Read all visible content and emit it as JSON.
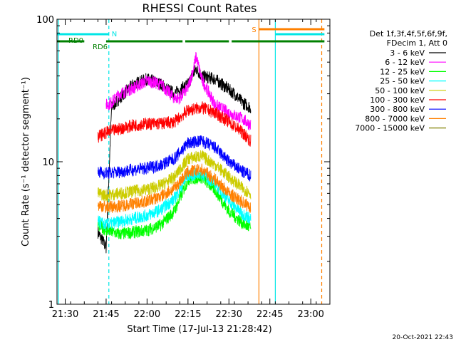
{
  "chart_data": {
    "type": "line",
    "title": "RHESSI Count Rates",
    "xlabel": "Start Time (17-Jul-13 21:28:42)",
    "ylabel": "Count Rate (s⁻¹ detector segment⁻¹)",
    "y_scale": "log",
    "ylim": [
      1,
      100
    ],
    "xlim": [
      "21:27",
      "23:07"
    ],
    "x_ticks": [
      "21:30",
      "21:45",
      "22:00",
      "22:15",
      "22:30",
      "22:45",
      "23:00"
    ],
    "y_ticks": [
      "1",
      "10",
      "100"
    ],
    "legend_header": [
      "Det 1f,3f,4f,5f,6f,9f,",
      "FDecim 1, Att 0"
    ],
    "legend_position": "right",
    "timestamp": "20-Oct-2021 22:43",
    "series": [
      {
        "name": "3 - 6 keV",
        "color": "#000000",
        "x": [
          "21:42",
          "21:45",
          "21:47",
          "21:50",
          "21:55",
          "22:00",
          "22:05",
          "22:10",
          "22:15",
          "22:18",
          "22:20",
          "22:25",
          "22:30",
          "22:32",
          "22:35",
          "22:38"
        ],
        "values": [
          3.2,
          2.5,
          24,
          28,
          35,
          38,
          35,
          30,
          35,
          45,
          40,
          38,
          32,
          30,
          26,
          24
        ]
      },
      {
        "name": "6 - 12 keV",
        "color": "#ff00ff",
        "x": [
          "21:45",
          "21:47",
          "21:50",
          "21:55",
          "22:00",
          "22:05",
          "22:10",
          "22:12",
          "22:15",
          "22:17",
          "22:18",
          "22:20",
          "22:25",
          "22:30",
          "22:35",
          "22:38"
        ],
        "values": [
          25,
          26,
          30,
          33,
          37,
          35,
          28,
          28,
          33,
          45,
          55,
          38,
          25,
          22,
          20,
          18
        ]
      },
      {
        "name": "12 - 25 keV",
        "color": "#00ff00",
        "x": [
          "21:42",
          "21:45",
          "21:50",
          "21:55",
          "22:00",
          "22:05",
          "22:10",
          "22:15",
          "22:20",
          "22:25",
          "22:30",
          "22:35",
          "22:38"
        ],
        "values": [
          3.6,
          3.3,
          3.1,
          3.2,
          3.3,
          3.6,
          4.5,
          7.5,
          7.8,
          6.3,
          4.5,
          3.7,
          3.4
        ]
      },
      {
        "name": "25 - 50 keV",
        "color": "#00ffff",
        "x": [
          "21:42",
          "21:45",
          "21:50",
          "21:55",
          "22:00",
          "22:05",
          "22:10",
          "22:15",
          "22:20",
          "22:25",
          "22:30",
          "22:35",
          "22:38"
        ],
        "values": [
          3.8,
          3.6,
          3.8,
          4.0,
          4.2,
          4.6,
          5.5,
          8.0,
          8.3,
          7.0,
          5.3,
          4.3,
          4.0
        ]
      },
      {
        "name": "50 - 100 keV",
        "color": "#cccc00",
        "x": [
          "21:42",
          "21:45",
          "21:50",
          "21:55",
          "22:00",
          "22:05",
          "22:10",
          "22:15",
          "22:20",
          "22:25",
          "22:30",
          "22:35",
          "22:38"
        ],
        "values": [
          6.0,
          5.8,
          6.0,
          6.2,
          6.4,
          6.8,
          7.8,
          10.5,
          11,
          9.5,
          7.8,
          6.5,
          6.0
        ]
      },
      {
        "name": "100 - 300 keV",
        "color": "#ff0000",
        "x": [
          "21:42",
          "21:45",
          "21:50",
          "21:55",
          "22:00",
          "22:05",
          "22:10",
          "22:15",
          "22:20",
          "22:25",
          "22:30",
          "22:35",
          "22:38"
        ],
        "values": [
          15,
          16,
          17,
          18,
          18.5,
          18.5,
          19,
          23,
          24,
          22,
          19,
          16,
          14
        ]
      },
      {
        "name": "300 - 800 keV",
        "color": "#0000ff",
        "x": [
          "21:42",
          "21:45",
          "21:50",
          "21:55",
          "22:00",
          "22:05",
          "22:10",
          "22:15",
          "22:20",
          "22:25",
          "22:30",
          "22:35",
          "22:38"
        ],
        "values": [
          8.5,
          8.3,
          8.5,
          8.8,
          9.0,
          9.5,
          10.5,
          13.5,
          14,
          12.5,
          10,
          8.5,
          8.0
        ]
      },
      {
        "name": "800 - 7000 keV",
        "color": "#ff8000",
        "x": [
          "21:42",
          "21:45",
          "21:50",
          "21:55",
          "22:00",
          "22:05",
          "22:10",
          "22:15",
          "22:20",
          "22:25",
          "22:30",
          "22:35",
          "22:38"
        ],
        "values": [
          5.0,
          4.8,
          4.9,
          5.1,
          5.3,
          5.7,
          6.5,
          8.5,
          8.8,
          7.5,
          6.0,
          5.2,
          4.8
        ]
      },
      {
        "name": "7000 - 15000 keV",
        "color": "#808000",
        "x": [],
        "values": []
      }
    ],
    "markers": [
      {
        "label": "N",
        "color": "#00e6e6",
        "x": "21:46"
      },
      {
        "label": "S",
        "color": "#ff8000",
        "x": "22:41"
      }
    ],
    "vertical_lines": [
      {
        "x": "21:27.5",
        "color": "#00e6e6",
        "style": "solid"
      },
      {
        "x": "21:46",
        "color": "#00e6e6",
        "style": "dashed"
      },
      {
        "x": "22:41",
        "color": "#ff8000",
        "style": "solid"
      },
      {
        "x": "22:47",
        "color": "#00e6e6",
        "style": "solid"
      },
      {
        "x": "23:04",
        "color": "#ff8000",
        "style": "dashed"
      }
    ],
    "bars": [
      {
        "label": "RD0",
        "color": "#008000",
        "segments": [
          [
            "21:27",
            "21:37"
          ],
          [
            "21:45",
            "22:13"
          ],
          [
            "22:14",
            "22:30"
          ],
          [
            "22:31",
            "23:05"
          ]
        ],
        "level": 62
      },
      {
        "label": "RD6",
        "color": "#008000",
        "segments": [],
        "level": 62
      },
      {
        "label": "",
        "color": "#00e6e6",
        "segments": [
          [
            "21:27",
            "21:46"
          ],
          [
            "22:47",
            "23:05"
          ]
        ],
        "level": 75
      },
      {
        "label": "",
        "color": "#ff8000",
        "segments": [
          [
            "22:41",
            "23:05"
          ]
        ],
        "level": 85
      }
    ]
  }
}
